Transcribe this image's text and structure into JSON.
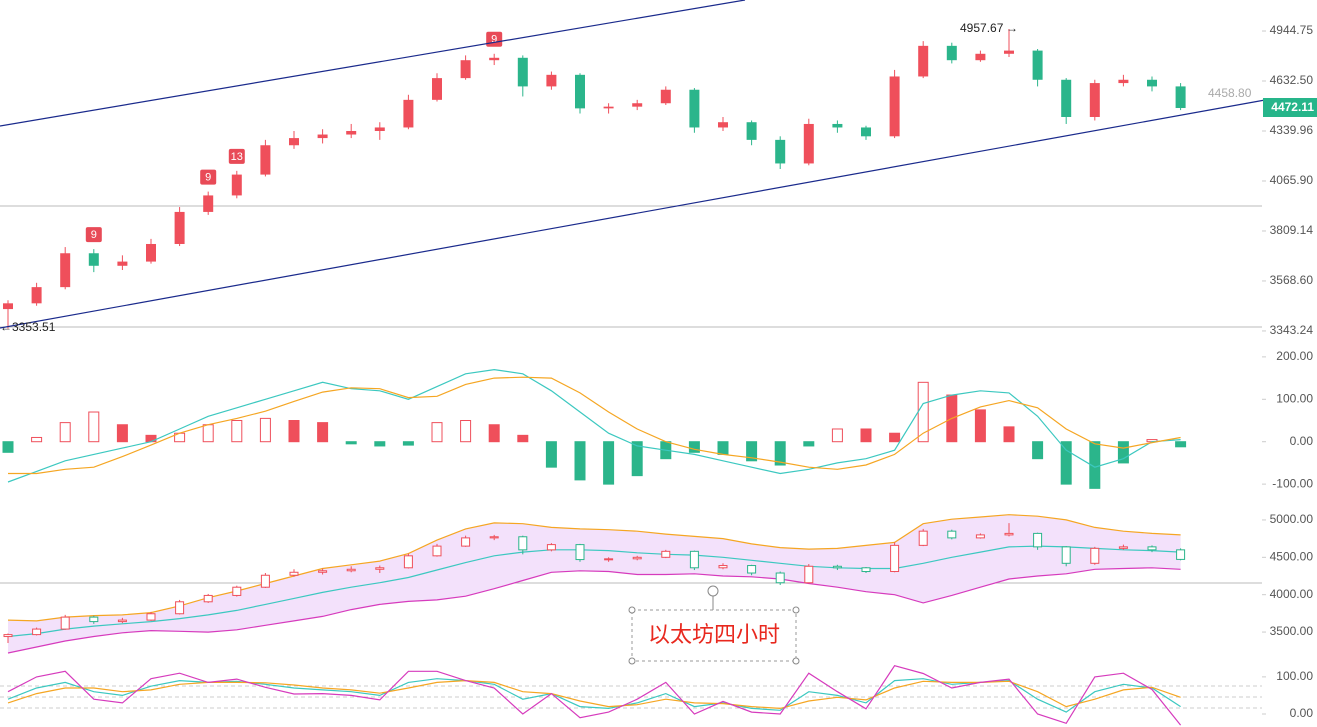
{
  "chart_data": [
    {
      "type": "candlestick",
      "log_scale": true,
      "up_color": "#ef4f5b",
      "down_color": "#2bb58b",
      "ylim": [
        3304,
        5149
      ],
      "yticks": [
        3343.24,
        {
          "value": 3568.6,
          "label": "3568.60"
        },
        3809.14,
        {
          "value": 4065.9,
          "label": "4065.90"
        },
        4339.96,
        {
          "value": 4632.5,
          "label": "4632.50"
        },
        4944.75
      ],
      "open": [
        3440,
        3466,
        3540,
        3700,
        3640,
        3660,
        3745,
        3905,
        3990,
        4100,
        4260,
        4300,
        4320,
        4340,
        4360,
        4520,
        4650,
        4760,
        4775,
        4600,
        4670,
        4470,
        4480,
        4500,
        4580,
        4360,
        4390,
        4290,
        4160,
        4380,
        4360,
        4310,
        4660,
        4850,
        4760,
        4800,
        4820,
        4640,
        4420,
        4620,
        4640,
        4600
      ],
      "high": [
        3480,
        3560,
        3730,
        3720,
        3690,
        3770,
        3930,
        4010,
        4120,
        4290,
        4340,
        4350,
        4380,
        4390,
        4550,
        4680,
        4790,
        4800,
        4790,
        4690,
        4680,
        4500,
        4520,
        4600,
        4590,
        4420,
        4400,
        4310,
        4410,
        4400,
        4370,
        4700,
        4880,
        4870,
        4820,
        4957.67,
        4830,
        4650,
        4640,
        4670,
        4660,
        4620
      ],
      "low": [
        3353.51,
        3455,
        3530,
        3610,
        3620,
        3650,
        3735,
        3890,
        3975,
        4090,
        4240,
        4270,
        4300,
        4290,
        4350,
        4510,
        4640,
        4730,
        4540,
        4580,
        4440,
        4440,
        4460,
        4490,
        4330,
        4340,
        4260,
        4130,
        4150,
        4330,
        4290,
        4300,
        4650,
        4740,
        4750,
        4780,
        4600,
        4380,
        4400,
        4600,
        4570,
        4460
      ],
      "close": [
        3466,
        3540,
        3700,
        3640,
        3660,
        3745,
        3905,
        3990,
        4100,
        4260,
        4300,
        4320,
        4340,
        4360,
        4520,
        4650,
        4760,
        4775,
        4600,
        4670,
        4470,
        4480,
        4500,
        4580,
        4360,
        4390,
        4290,
        4160,
        4380,
        4360,
        4310,
        4660,
        4850,
        4760,
        4800,
        4820,
        4640,
        4420,
        4620,
        4640,
        4600,
        4472.11
      ],
      "ref_price": {
        "value": 4458.8,
        "label": "4458.80"
      },
      "td_labels": [
        "9",
        "9",
        "13",
        "9"
      ]
    },
    {
      "type": "macd",
      "ylim": [
        -128,
        228
      ],
      "yticks": [
        {
          "value": -100,
          "label": "-100.00"
        },
        {
          "value": 0,
          "label": "0.00"
        },
        {
          "value": 100,
          "label": "100.00"
        },
        {
          "value": 200,
          "label": "200.00"
        }
      ],
      "histogram": [
        -25,
        10,
        45,
        70,
        40,
        15,
        20,
        40,
        50,
        55,
        50,
        45,
        -5,
        -10,
        -8,
        45,
        50,
        40,
        15,
        -60,
        -90,
        -100,
        -80,
        -40,
        -25,
        -30,
        -45,
        -55,
        -10,
        30,
        30,
        20,
        140,
        110,
        75,
        35,
        -40,
        -100,
        -110,
        -50,
        5,
        -12
      ],
      "dif": [
        -95,
        -70,
        -45,
        -30,
        -15,
        0,
        30,
        60,
        80,
        100,
        120,
        140,
        125,
        120,
        100,
        130,
        160,
        170,
        160,
        120,
        70,
        20,
        -10,
        -20,
        -30,
        -45,
        -60,
        -75,
        -65,
        -50,
        -40,
        -20,
        90,
        110,
        120,
        115,
        60,
        -20,
        -60,
        -40,
        0,
        5
      ],
      "dea": [
        -75,
        -75,
        -65,
        -60,
        -35,
        -8,
        20,
        40,
        55,
        72,
        95,
        117,
        127,
        125,
        104,
        107,
        135,
        150,
        152,
        150,
        115,
        70,
        30,
        0,
        -18,
        -30,
        -38,
        -48,
        -60,
        -65,
        -55,
        -30,
        20,
        55,
        82,
        97,
        80,
        30,
        -5,
        -15,
        -2,
        10
      ],
      "up_color": "#ef4f5b",
      "down_color": "#2bb58b",
      "dif_color": "#3cc8c0",
      "dea_color": "#f5a623"
    },
    {
      "type": "boll",
      "ylim": [
        3260,
        5200
      ],
      "yticks": [
        {
          "value": 3500,
          "label": "3500.00"
        },
        {
          "value": 4000,
          "label": "4000.00"
        },
        {
          "value": 4500,
          "label": "4500.00"
        },
        {
          "value": 5000,
          "label": "5000.00"
        }
      ],
      "mid": [
        3440,
        3480,
        3540,
        3580,
        3610,
        3640,
        3680,
        3730,
        3790,
        3870,
        3950,
        4030,
        4100,
        4160,
        4230,
        4330,
        4430,
        4520,
        4570,
        4600,
        4600,
        4590,
        4560,
        4540,
        4530,
        4500,
        4460,
        4420,
        4380,
        4360,
        4350,
        4350,
        4420,
        4500,
        4570,
        4640,
        4650,
        4640,
        4620,
        4600,
        4590,
        4570
      ],
      "upper": [
        3660,
        3650,
        3700,
        3720,
        3730,
        3760,
        3850,
        3960,
        4050,
        4150,
        4250,
        4350,
        4400,
        4450,
        4550,
        4730,
        4880,
        4960,
        4950,
        4900,
        4880,
        4870,
        4850,
        4810,
        4780,
        4750,
        4680,
        4630,
        4610,
        4620,
        4660,
        4700,
        4950,
        5010,
        5040,
        5070,
        5050,
        5000,
        4900,
        4850,
        4820,
        4800
      ],
      "lower": [
        3220,
        3300,
        3380,
        3440,
        3490,
        3520,
        3510,
        3500,
        3530,
        3590,
        3650,
        3710,
        3800,
        3870,
        3910,
        3930,
        3980,
        4080,
        4190,
        4300,
        4320,
        4310,
        4270,
        4270,
        4280,
        4250,
        4240,
        4210,
        4150,
        4100,
        4040,
        4000,
        3890,
        3990,
        4100,
        4210,
        4250,
        4280,
        4340,
        4350,
        4360,
        4340
      ],
      "mid_color": "#3cc8c0",
      "upper_color": "#f5a623",
      "lower_color": "#d63bbd",
      "band_color": "#f3e1fb"
    },
    {
      "type": "kdj",
      "ylim": [
        -35,
        132
      ],
      "yticks": [
        {
          "value": 0,
          "label": "0.00"
        },
        {
          "value": 100,
          "label": "100.00"
        }
      ],
      "k": [
        40,
        70,
        85,
        60,
        50,
        75,
        90,
        85,
        88,
        80,
        70,
        65,
        60,
        50,
        85,
        95,
        90,
        80,
        40,
        55,
        20,
        15,
        30,
        55,
        20,
        30,
        15,
        10,
        60,
        50,
        30,
        90,
        95,
        80,
        85,
        90,
        40,
        5,
        60,
        80,
        70,
        20
      ],
      "d": [
        30,
        55,
        70,
        70,
        60,
        65,
        80,
        85,
        85,
        84,
        78,
        70,
        65,
        56,
        70,
        85,
        90,
        85,
        60,
        55,
        35,
        20,
        25,
        40,
        30,
        28,
        20,
        15,
        35,
        45,
        38,
        70,
        88,
        85,
        85,
        88,
        60,
        20,
        40,
        65,
        72,
        45
      ],
      "j": [
        60,
        100,
        115,
        40,
        30,
        95,
        110,
        85,
        94,
        72,
        54,
        55,
        50,
        38,
        115,
        115,
        90,
        70,
        0,
        55,
        -10,
        5,
        40,
        85,
        0,
        34,
        5,
        0,
        110,
        60,
        14,
        130,
        109,
        70,
        85,
        94,
        0,
        -25,
        100,
        110,
        66,
        -30
      ],
      "k_color": "#3cc8c0",
      "d_color": "#f5a623",
      "j_color": "#d63bbd"
    }
  ],
  "caption": "以太坊四小时"
}
